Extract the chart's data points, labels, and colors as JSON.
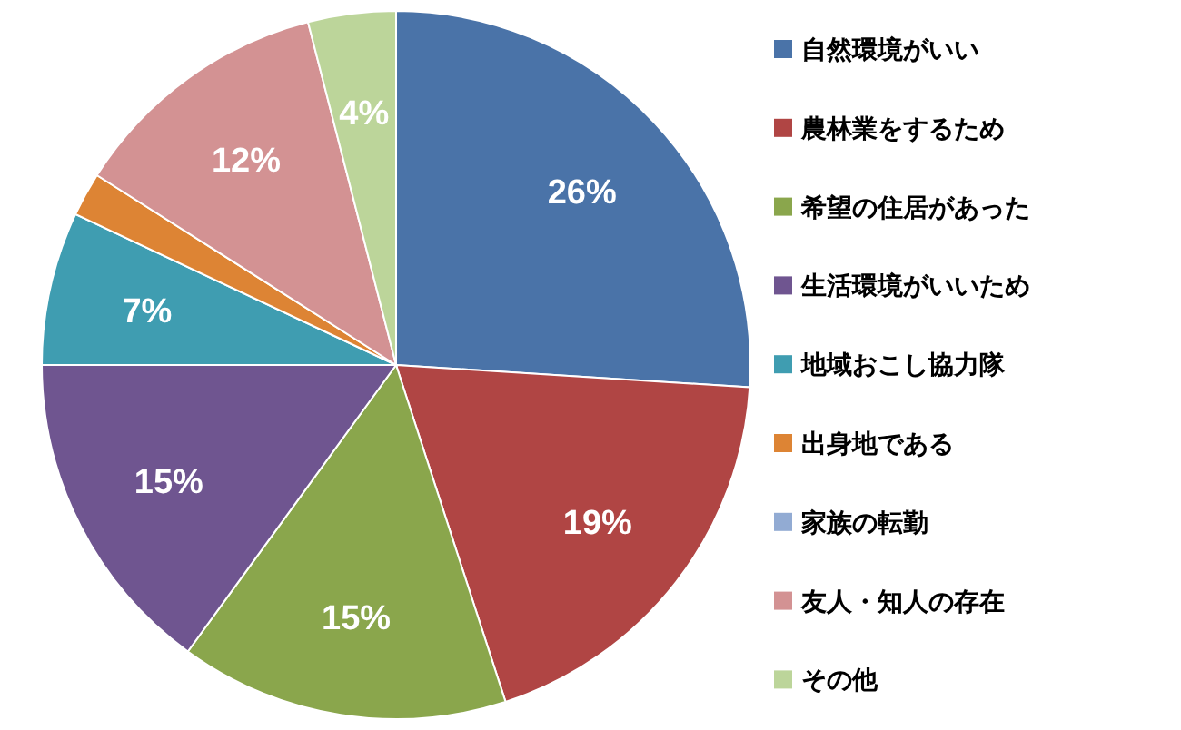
{
  "chart_data": {
    "type": "pie",
    "categories": [
      "自然環境がいい",
      "農林業をするため",
      "希望の住居があった",
      "生活環境がいいため",
      "地域おこし協力隊",
      "出身地である",
      "家族の転勤",
      "友人・知人の存在",
      "その他"
    ],
    "values": [
      26,
      19,
      15,
      15,
      7,
      2,
      0,
      12,
      4
    ],
    "value_labels": [
      "26%",
      "19%",
      "15%",
      "15%",
      "7%",
      null,
      null,
      "12%",
      "4%"
    ],
    "colors": [
      "#4a73a8",
      "#b04544",
      "#8aa64c",
      "#6f5590",
      "#3f9db1",
      "#dd8434",
      "#92abd3",
      "#d39293",
      "#bcd59a"
    ],
    "legend": "right"
  }
}
